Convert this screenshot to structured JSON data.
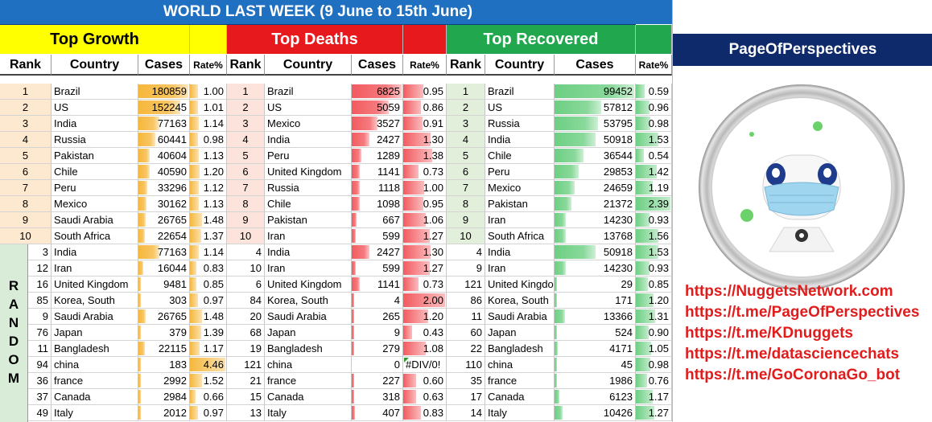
{
  "title": "WORLD LAST WEEK (9 June to 15th June)",
  "colors": {
    "title_bg": "#1f70c1",
    "growth_head": "#ffff00",
    "deaths_head": "#e8191c",
    "recovered_head": "#21a84e",
    "growth_bar": "#f6b73c",
    "deaths_bar": "#f25a5f",
    "recovered_bar": "#6ccf82",
    "brand_bg": "#0f2a6b",
    "link": "#e01c1c"
  },
  "sections": {
    "growth": "Top Growth",
    "deaths": "Top Deaths",
    "recovered": "Top Recovered"
  },
  "columns": {
    "rank": "Rank",
    "country": "Country",
    "cases": "Cases",
    "rate": "Rate%"
  },
  "random_letters": [
    "R",
    "A",
    "N",
    "D",
    "O",
    "M"
  ],
  "growth_rows": [
    {
      "rank": "1",
      "country": "Brazil",
      "cases": "180859",
      "rate": "1.00"
    },
    {
      "rank": "2",
      "country": "US",
      "cases": "152245",
      "rate": "1.01"
    },
    {
      "rank": "3",
      "country": "India",
      "cases": "77163",
      "rate": "1.14"
    },
    {
      "rank": "4",
      "country": "Russia",
      "cases": "60441",
      "rate": "0.98"
    },
    {
      "rank": "5",
      "country": "Pakistan",
      "cases": "40604",
      "rate": "1.13"
    },
    {
      "rank": "6",
      "country": "Chile",
      "cases": "40590",
      "rate": "1.20"
    },
    {
      "rank": "7",
      "country": "Peru",
      "cases": "33296",
      "rate": "1.12"
    },
    {
      "rank": "8",
      "country": "Mexico",
      "cases": "30162",
      "rate": "1.13"
    },
    {
      "rank": "9",
      "country": "Saudi Arabia",
      "cases": "26765",
      "rate": "1.48"
    },
    {
      "rank": "10",
      "country": "South Africa",
      "cases": "22654",
      "rate": "1.37"
    },
    {
      "rank": "3",
      "country": "India",
      "cases": "77163",
      "rate": "1.14"
    },
    {
      "rank": "12",
      "country": "Iran",
      "cases": "16044",
      "rate": "0.83"
    },
    {
      "rank": "16",
      "country": "United Kingdom",
      "cases": "9481",
      "rate": "0.85"
    },
    {
      "rank": "85",
      "country": "Korea, South",
      "cases": "303",
      "rate": "0.97"
    },
    {
      "rank": "9",
      "country": "Saudi Arabia",
      "cases": "26765",
      "rate": "1.48"
    },
    {
      "rank": "76",
      "country": "Japan",
      "cases": "379",
      "rate": "1.39"
    },
    {
      "rank": "11",
      "country": "Bangladesh",
      "cases": "22115",
      "rate": "1.17"
    },
    {
      "rank": "94",
      "country": "china",
      "cases": "183",
      "rate": "4.46"
    },
    {
      "rank": "36",
      "country": "france",
      "cases": "2992",
      "rate": "1.52"
    },
    {
      "rank": "37",
      "country": "Canada",
      "cases": "2984",
      "rate": "0.66"
    },
    {
      "rank": "49",
      "country": "Italy",
      "cases": "2012",
      "rate": "0.97"
    }
  ],
  "deaths_rows": [
    {
      "rank": "1",
      "country": "Brazil",
      "cases": "6825",
      "rate": "0.95"
    },
    {
      "rank": "2",
      "country": "US",
      "cases": "5059",
      "rate": "0.86"
    },
    {
      "rank": "3",
      "country": "Mexico",
      "cases": "3527",
      "rate": "0.91"
    },
    {
      "rank": "4",
      "country": "India",
      "cases": "2427",
      "rate": "1.30"
    },
    {
      "rank": "5",
      "country": "Peru",
      "cases": "1289",
      "rate": "1.38"
    },
    {
      "rank": "6",
      "country": "United Kingdom",
      "cases": "1141",
      "rate": "0.73"
    },
    {
      "rank": "7",
      "country": "Russia",
      "cases": "1118",
      "rate": "1.00"
    },
    {
      "rank": "8",
      "country": "Chile",
      "cases": "1098",
      "rate": "0.95"
    },
    {
      "rank": "9",
      "country": "Pakistan",
      "cases": "667",
      "rate": "1.06"
    },
    {
      "rank": "10",
      "country": "Iran",
      "cases": "599",
      "rate": "1.27"
    },
    {
      "rank": "4",
      "country": "India",
      "cases": "2427",
      "rate": "1.30"
    },
    {
      "rank": "10",
      "country": "Iran",
      "cases": "599",
      "rate": "1.27"
    },
    {
      "rank": "6",
      "country": "United Kingdom",
      "cases": "1141",
      "rate": "0.73"
    },
    {
      "rank": "84",
      "country": "Korea, South",
      "cases": "4",
      "rate": "2.00"
    },
    {
      "rank": "20",
      "country": "Saudi Arabia",
      "cases": "265",
      "rate": "1.20"
    },
    {
      "rank": "68",
      "country": "Japan",
      "cases": "9",
      "rate": "0.43"
    },
    {
      "rank": "19",
      "country": "Bangladesh",
      "cases": "279",
      "rate": "1.08"
    },
    {
      "rank": "121",
      "country": "china",
      "cases": "0",
      "rate": "#DIV/0!"
    },
    {
      "rank": "21",
      "country": "france",
      "cases": "227",
      "rate": "0.60"
    },
    {
      "rank": "15",
      "country": "Canada",
      "cases": "318",
      "rate": "0.63"
    },
    {
      "rank": "13",
      "country": "Italy",
      "cases": "407",
      "rate": "0.83"
    }
  ],
  "recovered_rows": [
    {
      "rank": "1",
      "country": "Brazil",
      "cases": "99452",
      "rate": "0.59"
    },
    {
      "rank": "2",
      "country": "US",
      "cases": "57812",
      "rate": "0.96"
    },
    {
      "rank": "3",
      "country": "Russia",
      "cases": "53795",
      "rate": "0.98"
    },
    {
      "rank": "4",
      "country": "India",
      "cases": "50918",
      "rate": "1.53"
    },
    {
      "rank": "5",
      "country": "Chile",
      "cases": "36544",
      "rate": "0.54"
    },
    {
      "rank": "6",
      "country": "Peru",
      "cases": "29853",
      "rate": "1.42"
    },
    {
      "rank": "7",
      "country": "Mexico",
      "cases": "24659",
      "rate": "1.19"
    },
    {
      "rank": "8",
      "country": "Pakistan",
      "cases": "21372",
      "rate": "2.39"
    },
    {
      "rank": "9",
      "country": "Iran",
      "cases": "14230",
      "rate": "0.93"
    },
    {
      "rank": "10",
      "country": "South Africa",
      "cases": "13768",
      "rate": "1.56"
    },
    {
      "rank": "4",
      "country": "India",
      "cases": "50918",
      "rate": "1.53"
    },
    {
      "rank": "9",
      "country": "Iran",
      "cases": "14230",
      "rate": "0.93"
    },
    {
      "rank": "121",
      "country": "United Kingdom",
      "cases": "29",
      "rate": "0.85"
    },
    {
      "rank": "86",
      "country": "Korea, South",
      "cases": "171",
      "rate": "1.20"
    },
    {
      "rank": "11",
      "country": "Saudi Arabia",
      "cases": "13366",
      "rate": "1.31"
    },
    {
      "rank": "60",
      "country": "Japan",
      "cases": "524",
      "rate": "0.90"
    },
    {
      "rank": "22",
      "country": "Bangladesh",
      "cases": "4171",
      "rate": "1.05"
    },
    {
      "rank": "110",
      "country": "china",
      "cases": "45",
      "rate": "0.98"
    },
    {
      "rank": "35",
      "country": "france",
      "cases": "1986",
      "rate": "0.76"
    },
    {
      "rank": "17",
      "country": "Canada",
      "cases": "6123",
      "rate": "1.17"
    },
    {
      "rank": "14",
      "country": "Italy",
      "cases": "10426",
      "rate": "1.27"
    }
  ],
  "right_panel": {
    "brand": "PageOfPerspectives",
    "logo_icon": "masked-robot-icon",
    "links": [
      "https://NuggetsNetwork.com",
      "https://t.me/PageOfPerspectives",
      "https://t.me/KDnuggets",
      "https://t.me/datasciencechats",
      "https://t.me/GoCoronaGo_bot"
    ]
  }
}
